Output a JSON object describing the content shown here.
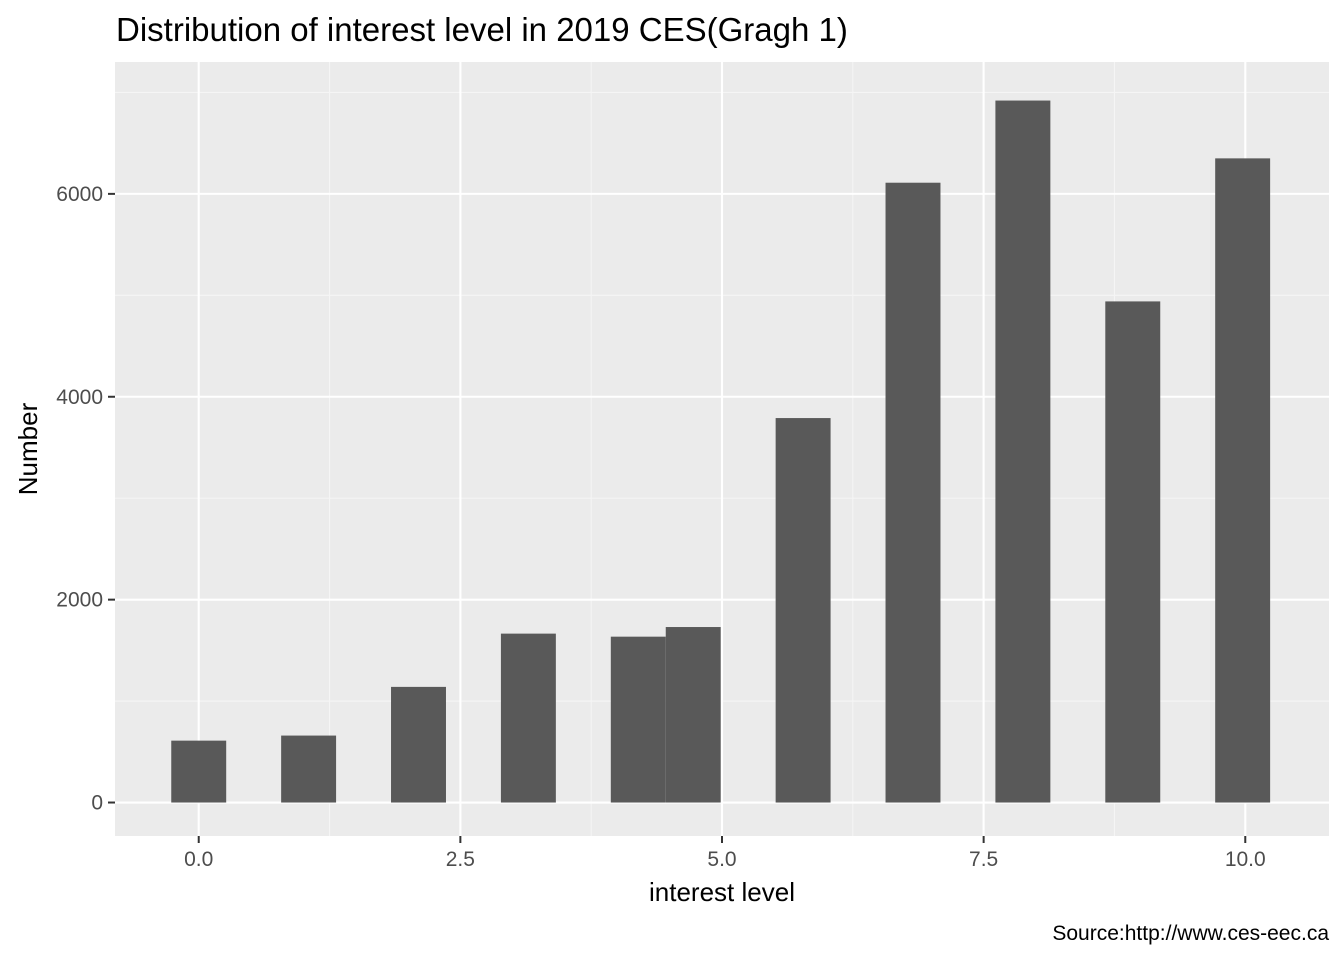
{
  "chart_data": {
    "type": "bar",
    "title": "Distribution of interest level in 2019 CES(Gragh 1)",
    "xlabel": "interest level",
    "ylabel": "Number",
    "caption": "Source:http://www.ces-eec.ca",
    "xlim": [
      -0.8,
      10.8
    ],
    "ylim": [
      -330,
      7300
    ],
    "x_ticks": [
      0,
      2.5,
      5,
      7.5,
      10
    ],
    "x_tick_labels": [
      "0.0",
      "2.5",
      "5.0",
      "7.5",
      "10.0"
    ],
    "y_ticks": [
      0,
      2000,
      4000,
      6000
    ],
    "y_tick_labels": [
      "0",
      "2000",
      "4000",
      "6000"
    ],
    "bar_width": 0.525,
    "bars": [
      {
        "x": 0.0,
        "value": 610
      },
      {
        "x": 1.05,
        "value": 660
      },
      {
        "x": 2.1,
        "value": 1140
      },
      {
        "x": 3.15,
        "value": 1665
      },
      {
        "x": 4.2,
        "value": 1635
      },
      {
        "x": 4.725,
        "value": 1730
      },
      {
        "x": 5.775,
        "value": 3790
      },
      {
        "x": 6.825,
        "value": 6110
      },
      {
        "x": 7.875,
        "value": 6920
      },
      {
        "x": 8.925,
        "value": 4940
      },
      {
        "x": 9.975,
        "value": 6350
      }
    ],
    "colors": {
      "panel_background": "#ebebeb",
      "grid_major": "#ffffff",
      "grid_minor": "#f5f5f5",
      "bar_fill": "#595959",
      "tick_text": "#4d4d4d",
      "tick_mark": "#333333"
    },
    "grid": true,
    "legend": "none"
  }
}
